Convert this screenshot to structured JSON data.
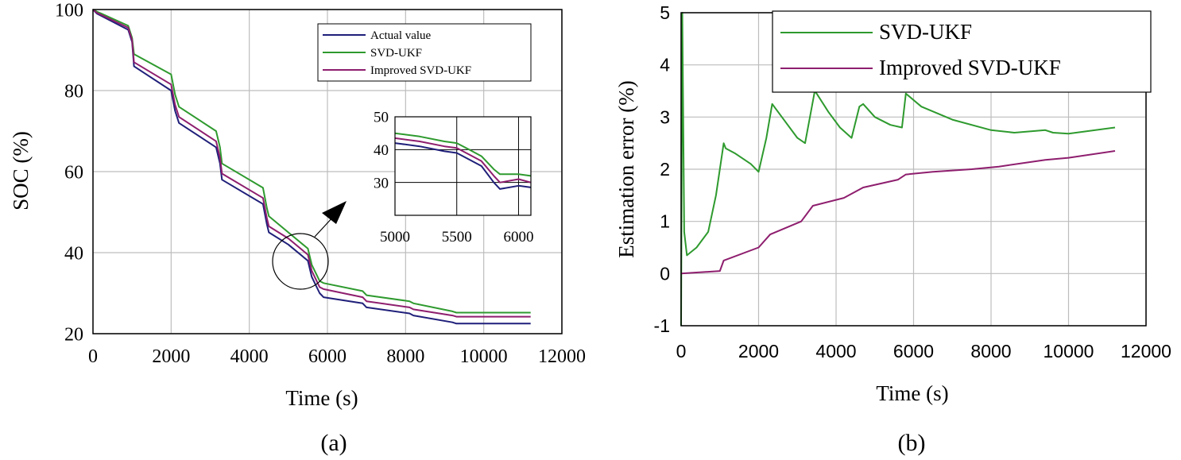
{
  "colors": {
    "actual": "#1f1f7a",
    "svd_ukf": "#2e9a2e",
    "improved": "#8e1e6e",
    "grid": "#bdbdbd",
    "axis": "#000000"
  },
  "chart_data": [
    {
      "type": "line",
      "panel_label": "(a)",
      "title": "",
      "xlabel": "Time (s)",
      "ylabel": "SOC (%)",
      "xlim": [
        0,
        12000
      ],
      "ylim": [
        20,
        100
      ],
      "xticks": [
        "0",
        "2000",
        "4000",
        "6000",
        "8000",
        "10000",
        "12000"
      ],
      "yticks": [
        "20",
        "40",
        "60",
        "80",
        "100"
      ],
      "grid": true,
      "legend_position": "top-right",
      "series": [
        {
          "name": "Actual value",
          "x": [
            0,
            100,
            900,
            1000,
            1050,
            2000,
            2100,
            2200,
            3150,
            3250,
            3300,
            4350,
            4450,
            4500,
            5000,
            5500,
            5600,
            5800,
            5900,
            6900,
            7000,
            8100,
            8200,
            9200,
            9300,
            11200
          ],
          "y": [
            100,
            99,
            95,
            92,
            86,
            80,
            75,
            72,
            66,
            62,
            58,
            52,
            47,
            45,
            42,
            38,
            34,
            30,
            29,
            27.5,
            26.5,
            25,
            24.5,
            22.8,
            22.5,
            22.5
          ]
        },
        {
          "name": "SVD-UKF",
          "x": [
            0,
            100,
            900,
            1000,
            1050,
            2000,
            2100,
            2200,
            3150,
            3250,
            3300,
            4350,
            4450,
            4500,
            5000,
            5500,
            5600,
            5800,
            5900,
            6900,
            7000,
            8100,
            8200,
            9200,
            9300,
            11200
          ],
          "y": [
            100,
            99.5,
            96,
            93,
            89,
            84,
            79,
            76,
            70,
            66,
            62,
            56,
            51,
            49,
            45,
            41,
            37,
            33,
            32.5,
            30.5,
            29.5,
            28,
            27.5,
            25.5,
            25.2,
            25.2
          ]
        },
        {
          "name": "Improved SVD-UKF",
          "x": [
            0,
            100,
            900,
            1000,
            1050,
            2000,
            2100,
            2200,
            3150,
            3250,
            3300,
            4350,
            4450,
            4500,
            5000,
            5500,
            5600,
            5800,
            5900,
            6900,
            7000,
            8100,
            8200,
            9200,
            9300,
            11200
          ],
          "y": [
            100,
            99.2,
            95.5,
            92.5,
            87,
            81.5,
            76.5,
            73.5,
            67.5,
            63.5,
            59.5,
            53.5,
            48.5,
            46.5,
            43.5,
            39.5,
            35.5,
            31.5,
            31,
            29,
            28,
            26.5,
            26,
            24.5,
            24.2,
            24.2
          ]
        }
      ],
      "inset": {
        "xlim": [
          5000,
          6100
        ],
        "ylim": [
          20,
          50
        ],
        "xticks": [
          "5000",
          "5500",
          "6000"
        ],
        "yticks": [
          "30",
          "40",
          "50"
        ],
        "series": [
          {
            "name": "Actual value",
            "x": [
              5000,
              5200,
              5400,
              5500,
              5600,
              5700,
              5800,
              5850,
              6000,
              6100
            ],
            "y": [
              42,
              41,
              39.5,
              39,
              37,
              35,
              30,
              28,
              29,
              28.5
            ]
          },
          {
            "name": "SVD-UKF",
            "x": [
              5000,
              5200,
              5400,
              5500,
              5600,
              5700,
              5800,
              5850,
              6000,
              6100
            ],
            "y": [
              45,
              44,
              42.5,
              42,
              40,
              38,
              34,
              32.5,
              32.5,
              32
            ]
          },
          {
            "name": "Improved SVD-UKF",
            "x": [
              5000,
              5200,
              5400,
              5500,
              5600,
              5700,
              5800,
              5850,
              6000,
              6100
            ],
            "y": [
              43.5,
              42.5,
              41,
              40.5,
              38.5,
              36.5,
              32,
              30,
              31,
              30
            ]
          }
        ]
      }
    },
    {
      "type": "line",
      "panel_label": "(b)",
      "title": "",
      "xlabel": "Time (s)",
      "ylabel": "Estimation error (%)",
      "xlim": [
        0,
        12000
      ],
      "ylim": [
        -1,
        5
      ],
      "xticks": [
        "0",
        "2000",
        "4000",
        "6000",
        "8000",
        "10000",
        "12000"
      ],
      "yticks": [
        "-1",
        "0",
        "1",
        "2",
        "3",
        "4",
        "5"
      ],
      "grid": true,
      "legend_position": "top-right",
      "series": [
        {
          "name": "SVD-UKF",
          "x": [
            0,
            30,
            80,
            150,
            400,
            700,
            900,
            1100,
            1150,
            1400,
            1800,
            2000,
            2200,
            2350,
            2600,
            3000,
            3200,
            3450,
            3500,
            3800,
            4100,
            4400,
            4600,
            4700,
            5000,
            5400,
            5700,
            5800,
            6200,
            7000,
            8000,
            8600,
            9400,
            9600,
            10000,
            11200
          ],
          "y": [
            -1,
            5,
            0.8,
            0.35,
            0.5,
            0.8,
            1.5,
            2.5,
            2.4,
            2.3,
            2.1,
            1.95,
            2.6,
            3.25,
            3.0,
            2.6,
            2.5,
            3.5,
            3.45,
            3.1,
            2.8,
            2.6,
            3.2,
            3.25,
            3.0,
            2.85,
            2.8,
            3.45,
            3.2,
            2.95,
            2.75,
            2.7,
            2.75,
            2.7,
            2.68,
            2.8
          ]
        },
        {
          "name": "Improved SVD-UKF",
          "x": [
            0,
            1000,
            1100,
            2000,
            2300,
            3100,
            3400,
            4200,
            4700,
            5600,
            5800,
            6500,
            7500,
            8200,
            9400,
            10000,
            11200
          ],
          "y": [
            0,
            0.05,
            0.25,
            0.5,
            0.75,
            1.0,
            1.3,
            1.45,
            1.65,
            1.8,
            1.9,
            1.95,
            2.0,
            2.05,
            2.18,
            2.22,
            2.35
          ]
        }
      ]
    }
  ]
}
